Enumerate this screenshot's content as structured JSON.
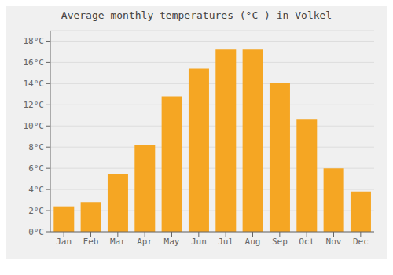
{
  "chart_data": {
    "type": "bar",
    "title": "Average monthly temperatures (°C ) in Volkel",
    "categories": [
      "Jan",
      "Feb",
      "Mar",
      "Apr",
      "May",
      "Jun",
      "Jul",
      "Aug",
      "Sep",
      "Oct",
      "Nov",
      "Dec"
    ],
    "values": [
      2.4,
      2.8,
      5.5,
      8.2,
      12.8,
      15.4,
      17.2,
      17.2,
      14.1,
      10.6,
      6.0,
      3.8
    ],
    "color": "#F5A623",
    "ylim": [
      0,
      19
    ],
    "yticks": [
      {
        "value": 0,
        "label": "0°C"
      },
      {
        "value": 2,
        "label": "2°C"
      },
      {
        "value": 4,
        "label": "4°C"
      },
      {
        "value": 6,
        "label": "6°C"
      },
      {
        "value": 8,
        "label": "8°C"
      },
      {
        "value": 10,
        "label": "10°C"
      },
      {
        "value": 12,
        "label": "12°C"
      },
      {
        "value": 14,
        "label": "14°C"
      },
      {
        "value": 16,
        "label": "16°C"
      },
      {
        "value": 18,
        "label": "18°C"
      }
    ],
    "grid": true
  }
}
